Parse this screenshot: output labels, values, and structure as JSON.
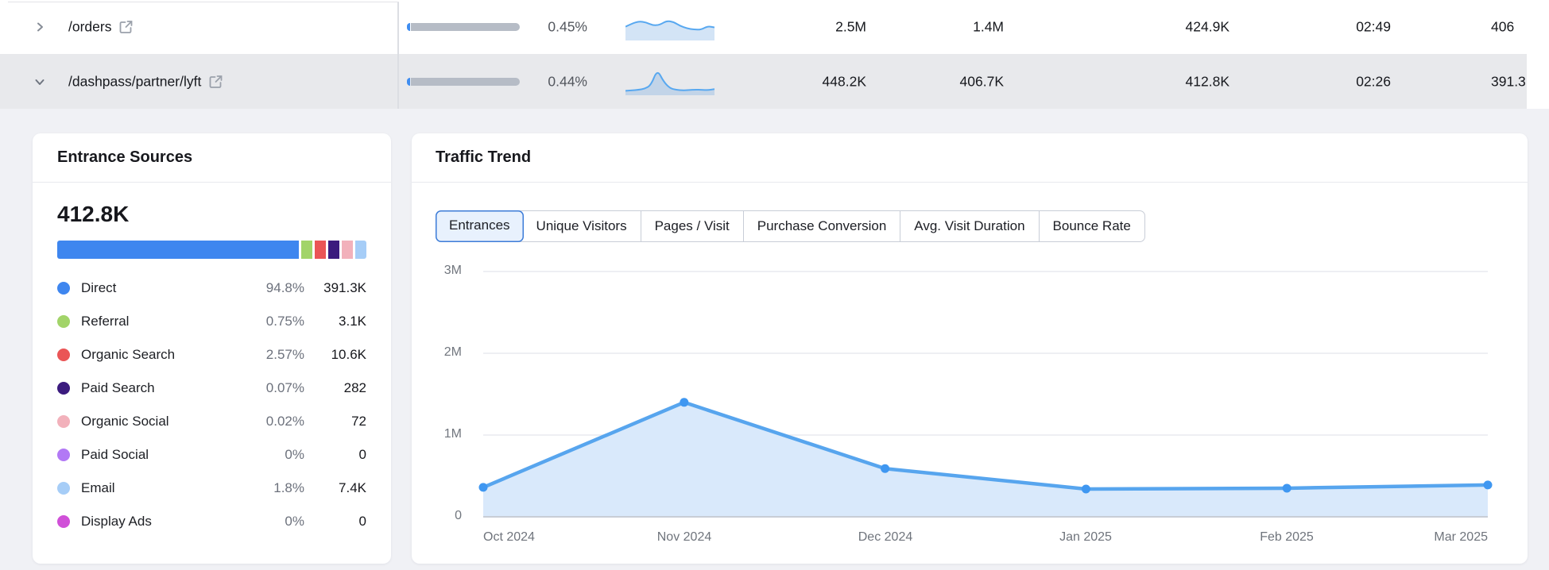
{
  "table": {
    "rows": [
      {
        "path": "/orders",
        "state": "collapsed",
        "bar_pct_label": "0.45%",
        "metrics": [
          "2.5M",
          "1.4M",
          "424.9K",
          "02:49",
          "406"
        ]
      },
      {
        "path": "/dashpass/partner/lyft",
        "state": "expanded",
        "bar_pct_label": "0.44%",
        "metrics": [
          "448.2K",
          "406.7K",
          "412.8K",
          "02:26",
          "391.3"
        ]
      }
    ]
  },
  "entrance_sources": {
    "title": "Entrance Sources",
    "total": "412.8K",
    "items": [
      {
        "label": "Direct",
        "pct": "94.8%",
        "value": "391.3K",
        "color": "#3e86ef"
      },
      {
        "label": "Referral",
        "pct": "0.75%",
        "value": "3.1K",
        "color": "#a2d469"
      },
      {
        "label": "Organic Search",
        "pct": "2.57%",
        "value": "10.6K",
        "color": "#ea5556"
      },
      {
        "label": "Paid Search",
        "pct": "0.07%",
        "value": "282",
        "color": "#3b1b7e"
      },
      {
        "label": "Organic Social",
        "pct": "0.02%",
        "value": "72",
        "color": "#f2b1bb"
      },
      {
        "label": "Paid Social",
        "pct": "0%",
        "value": "0",
        "color": "#b279f5"
      },
      {
        "label": "Email",
        "pct": "1.8%",
        "value": "7.4K",
        "color": "#a6cdf7"
      },
      {
        "label": "Display Ads",
        "pct": "0%",
        "value": "0",
        "color": "#d050d8"
      }
    ]
  },
  "traffic_trend": {
    "title": "Traffic Trend",
    "tabs": [
      {
        "label": "Entrances",
        "active": true
      },
      {
        "label": "Unique Visitors",
        "active": false
      },
      {
        "label": "Pages / Visit",
        "active": false
      },
      {
        "label": "Purchase Conversion",
        "active": false
      },
      {
        "label": "Avg. Visit Duration",
        "active": false
      },
      {
        "label": "Bounce Rate",
        "active": false
      }
    ]
  },
  "chart_data": [
    {
      "id": "traffic-trend",
      "type": "area",
      "title": "Traffic Trend",
      "x": [
        "Oct 2024",
        "Nov 2024",
        "Dec 2024",
        "Jan 2025",
        "Feb 2025",
        "Mar 2025"
      ],
      "series": [
        {
          "name": "Entrances",
          "values": [
            360000,
            1400000,
            590000,
            340000,
            350000,
            390000
          ]
        }
      ],
      "ylim": [
        0,
        3000000
      ],
      "yticks": [
        0,
        1000000,
        2000000,
        3000000
      ],
      "ytick_labels": [
        "0",
        "1M",
        "2M",
        "3M"
      ],
      "grid": true,
      "legend_position": "none",
      "line_color": "#57a5ee",
      "point_color": "#3f97f1",
      "fill_color": "#d9e9fb"
    },
    {
      "id": "entrance-sources-breakdown",
      "type": "bar",
      "title": "Entrance Sources",
      "total_label": "412.8K",
      "categories": [
        "Direct",
        "Referral",
        "Organic Search",
        "Paid Search",
        "Organic Social",
        "Paid Social",
        "Email",
        "Display Ads"
      ],
      "values": [
        391300,
        3100,
        10600,
        282,
        72,
        0,
        7400,
        0
      ],
      "percentages": [
        94.8,
        0.75,
        2.57,
        0.07,
        0.02,
        0,
        1.8,
        0
      ],
      "colors": [
        "#3e86ef",
        "#a2d469",
        "#ea5556",
        "#3b1b7e",
        "#f2b1bb",
        "#b279f5",
        "#a6cdf7",
        "#d050d8"
      ]
    },
    {
      "id": "row-sparklines",
      "type": "line",
      "series": [
        {
          "name": "/orders",
          "values": [
            45,
            58,
            66,
            62,
            50,
            52,
            68,
            64,
            48,
            38,
            34,
            33,
            47,
            42
          ]
        },
        {
          "name": "/dashpass/partner/lyft",
          "values": [
            8,
            10,
            12,
            16,
            30,
            92,
            44,
            18,
            12,
            10,
            11,
            13,
            12,
            11,
            15
          ]
        }
      ]
    }
  ]
}
